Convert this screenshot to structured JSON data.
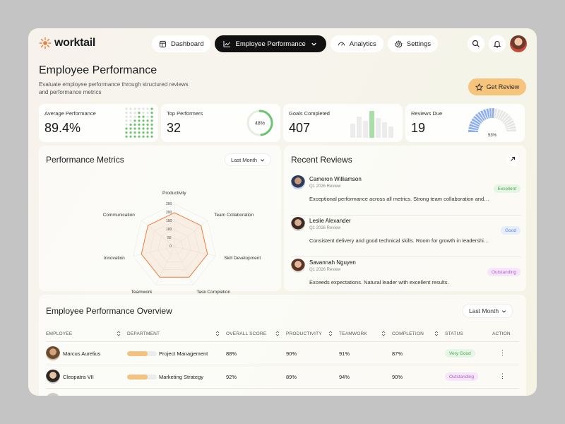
{
  "brand": {
    "name": "worktail",
    "accent": "#ef7d3c"
  },
  "nav": [
    {
      "label": "Dashboard",
      "icon": "dashboard-icon"
    },
    {
      "label": "Employee Performance",
      "icon": "chart-line-icon",
      "active": true
    },
    {
      "label": "Analytics",
      "icon": "analytics-icon"
    },
    {
      "label": "Settings",
      "icon": "gear-icon"
    }
  ],
  "header": {
    "title": "Employee Performance",
    "subtitle": "Evaluate employee performance through structured reviews and performance metrics",
    "cta": "Get Review"
  },
  "stats": [
    {
      "label": "Average Performance",
      "value": "89.4%"
    },
    {
      "label": "Top Performers",
      "value": "32",
      "ring_label": "48%",
      "ring_fraction": 0.48
    },
    {
      "label": "Goals Completed",
      "value": "407"
    },
    {
      "label": "Reviews Due",
      "value": "19",
      "gauge_label": "53%",
      "gauge_fraction": 0.53
    }
  ],
  "metrics": {
    "title": "Performance Metrics",
    "filter": "Last Month",
    "ticks": [
      "250",
      "200",
      "150",
      "100",
      "50",
      "0"
    ],
    "axes": [
      "Productivity",
      "Team Collaboration",
      "Skill Development",
      "Task Completion",
      "Teamwork",
      "Innovation",
      "Communication"
    ],
    "values": [
      200,
      200,
      200,
      200,
      200,
      200,
      200
    ]
  },
  "reviews": {
    "title": "Recent Reviews",
    "items": [
      {
        "name": "Cameron Williamson",
        "period": "Q1 2026 Review",
        "text": "Exceptional performance across all metrics. Strong team collaboration and leadership.",
        "badge": "Excellent"
      },
      {
        "name": "Leslie Alexander",
        "period": "Q1 2026 Review",
        "text": "Consistent delivery and good technical skills. Room for growth in leadership skills.",
        "badge": "Good"
      },
      {
        "name": "Savannah Nguyen",
        "period": "Q1 2026 Review",
        "text": "Exceeds expectations. Natural leader with excellent results.",
        "badge": "Outstanding"
      }
    ]
  },
  "overview": {
    "title": "Employee Performance Overview",
    "filter": "Last Month",
    "columns": [
      "EMPLOYEE",
      "DEPARTMENT",
      "OVERALL SCORE",
      "PRODUCTIVITY",
      "TEAMWORK",
      "COMPLETION",
      "STATUS",
      "ACTION"
    ],
    "rows": [
      {
        "employee": "Marcus Aurelius",
        "department": "Project Management",
        "dept_fill": 0.7,
        "score": "88%",
        "productivity": "90%",
        "teamwork": "91%",
        "completion": "87%",
        "status": "Very Good",
        "action": "⋮"
      },
      {
        "employee": "Cleopatra VII",
        "department": "Marketing Strategy",
        "dept_fill": 0.7,
        "score": "92%",
        "productivity": "89%",
        "teamwork": "94%",
        "completion": "90%",
        "status": "Outstanding",
        "action": "⋮"
      }
    ]
  }
}
